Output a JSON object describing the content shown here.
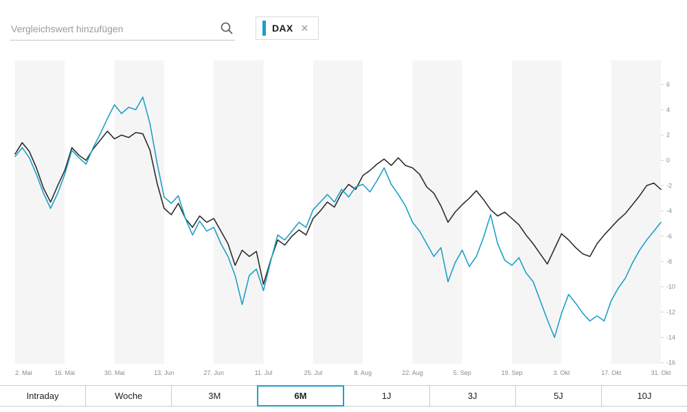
{
  "header": {
    "search": {
      "placeholder": "Vergleichswert hinzufügen"
    },
    "chip": {
      "label": "DAX",
      "color": "#1d9fc6",
      "close": "✕"
    }
  },
  "chart_data": {
    "type": "line",
    "title": "",
    "legend": "none",
    "grid": "vertical-bands",
    "band_colors": [
      "#f5f5f5",
      "#ffffff"
    ],
    "ylim": [
      -16.1,
      7.9
    ],
    "y_ticks": [
      6,
      4,
      2,
      0,
      -2,
      -4,
      -6,
      -8,
      -10,
      -12,
      -14,
      -16
    ],
    "x_ticks": [
      "2. Mai",
      "16. Mai",
      "30. Mai",
      "13. Jun",
      "27. Jun",
      "11. Jul",
      "25. Jul",
      "8. Aug",
      "22. Aug",
      "5. Sep",
      "19. Sep",
      "3. Okt",
      "17. Okt",
      "31. Okt"
    ],
    "series": [
      {
        "name": "",
        "color": "#2b2b2b",
        "values": [
          0.5,
          1.4,
          0.7,
          -0.6,
          -2.2,
          -3.3,
          -2.0,
          -0.8,
          1.0,
          0.4,
          0.0,
          0.9,
          1.6,
          2.3,
          1.7,
          2.0,
          1.8,
          2.2,
          2.1,
          0.8,
          -1.8,
          -3.8,
          -4.3,
          -3.4,
          -4.6,
          -5.3,
          -4.4,
          -4.9,
          -4.6,
          -5.6,
          -6.6,
          -8.3,
          -7.1,
          -7.6,
          -7.2,
          -9.8,
          -7.9,
          -6.3,
          -6.7,
          -6.0,
          -5.5,
          -5.9,
          -4.6,
          -4.0,
          -3.3,
          -3.7,
          -2.6,
          -1.9,
          -2.3,
          -1.2,
          -0.8,
          -0.3,
          0.1,
          -0.4,
          0.2,
          -0.4,
          -0.6,
          -1.1,
          -2.1,
          -2.6,
          -3.6,
          -4.9,
          -4.1,
          -3.5,
          -3.0,
          -2.4,
          -3.1,
          -3.9,
          -4.4,
          -4.1,
          -4.6,
          -5.1,
          -5.9,
          -6.6,
          -7.4,
          -8.2,
          -7.0,
          -5.8,
          -6.3,
          -6.9,
          -7.4,
          -7.6,
          -6.6,
          -5.9,
          -5.3,
          -4.7,
          -4.2,
          -3.5,
          -2.8,
          -2.0,
          -1.8,
          -2.3
        ]
      },
      {
        "name": "DAX",
        "color": "#1d9fc6",
        "values": [
          0.3,
          1.0,
          0.2,
          -1.1,
          -2.6,
          -3.8,
          -2.6,
          -1.1,
          0.8,
          0.2,
          -0.3,
          1.0,
          2.1,
          3.3,
          4.4,
          3.7,
          4.2,
          4.0,
          5.0,
          2.9,
          -0.2,
          -2.9,
          -3.4,
          -2.8,
          -4.6,
          -5.9,
          -4.8,
          -5.6,
          -5.3,
          -6.6,
          -7.6,
          -9.1,
          -11.4,
          -9.1,
          -8.6,
          -10.3,
          -8.0,
          -5.9,
          -6.3,
          -5.6,
          -4.9,
          -5.3,
          -3.9,
          -3.3,
          -2.7,
          -3.3,
          -2.3,
          -2.9,
          -2.1,
          -1.9,
          -2.5,
          -1.6,
          -0.6,
          -1.9,
          -2.7,
          -3.6,
          -4.9,
          -5.6,
          -6.6,
          -7.6,
          -6.9,
          -9.6,
          -8.1,
          -7.1,
          -8.4,
          -7.6,
          -6.1,
          -4.3,
          -6.6,
          -7.9,
          -8.3,
          -7.7,
          -8.9,
          -9.6,
          -11.1,
          -12.6,
          -14.0,
          -12.1,
          -10.6,
          -11.3,
          -12.1,
          -12.7,
          -12.3,
          -12.7,
          -11.1,
          -10.1,
          -9.3,
          -8.1,
          -7.1,
          -6.3,
          -5.6,
          -4.9
        ]
      }
    ]
  },
  "tabs": {
    "items": [
      {
        "label": "Intraday",
        "active": false
      },
      {
        "label": "Woche",
        "active": false
      },
      {
        "label": "3M",
        "active": false
      },
      {
        "label": "6M",
        "active": true
      },
      {
        "label": "1J",
        "active": false
      },
      {
        "label": "3J",
        "active": false
      },
      {
        "label": "5J",
        "active": false
      },
      {
        "label": "10J",
        "active": false
      }
    ]
  }
}
